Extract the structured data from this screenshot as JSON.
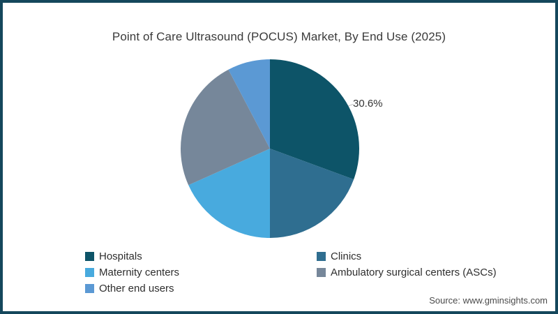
{
  "page": {
    "source": "Source: www.gminsights.com"
  },
  "chart_data": {
    "type": "pie",
    "title": "Point of Care Ultrasound (POCUS) Market, By End Use (2025)",
    "start_angle_deg": -90,
    "direction": "clockwise",
    "legend_position": "bottom-left-two-columns",
    "frame_color": "#15475c",
    "series": [
      {
        "name": "Hospitals",
        "value": 30.6,
        "data_label": "30.6%",
        "color": "#0d5468"
      },
      {
        "name": "Clinics",
        "value": 19.4,
        "data_label": "",
        "color": "#2f6e90"
      },
      {
        "name": "Maternity centers",
        "value": 18.3,
        "data_label": "",
        "color": "#48aade"
      },
      {
        "name": "Ambulatory surgical centers (ASCs)",
        "value": 24.0,
        "data_label": "",
        "color": "#76879a"
      },
      {
        "name": "Other end users",
        "value": 7.7,
        "data_label": "",
        "color": "#5b99d4"
      }
    ]
  }
}
